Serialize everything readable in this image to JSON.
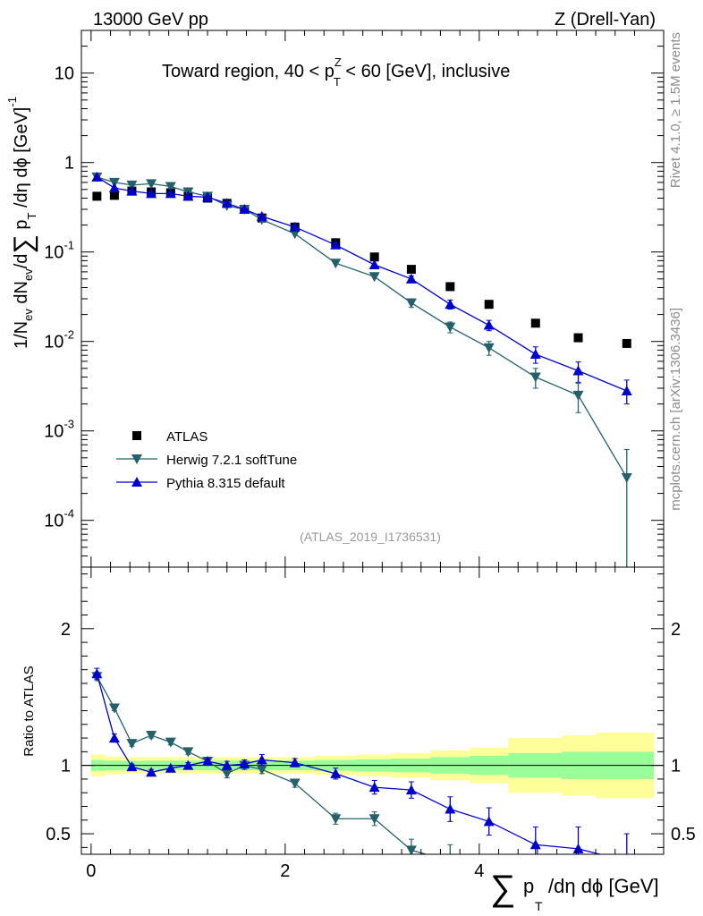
{
  "header": {
    "left": "13000 GeV pp",
    "right": "Z (Drell-Yan)"
  },
  "side_labels": {
    "rivet": "Rivet 4.1.0, ≥ 1.5M events",
    "mcplots": "mcplots.cern.ch [arXiv:1306.3436]"
  },
  "chart_data": [
    {
      "type": "scatter",
      "panel": "main",
      "title": "Toward region, 40 < p_T^Z < 60 [GeV], inclusive",
      "title_parts": {
        "pre": "Toward region, 40 < p",
        "sup": "Z",
        "sub": "T",
        "post": " < 60 [GeV], inclusive"
      },
      "analysis_tag": "(ATLAS_2019_I1736531)",
      "xlabel": "Σ p_T /dη dφ [GeV]",
      "ylabel": "1/N_ev dN_ev/dΣ p_T /dη dφ [GeV]^-1",
      "yscale": "log",
      "xlim": [
        -0.1,
        5.9
      ],
      "ylim": [
        3e-05,
        30
      ],
      "x_ticks": [
        0,
        2,
        4
      ],
      "x_tick_labels": [
        "0",
        "2",
        "4"
      ],
      "y_ticks": [
        0.0001,
        0.001,
        0.01,
        0.1,
        1,
        10
      ],
      "y_tick_labels": [
        "10^-4",
        "10^-3",
        "10^-2",
        "10^-1",
        "1",
        "10"
      ],
      "legend": [
        "ATLAS",
        "Herwig 7.2.1 softTune",
        "Pythia 8.315 default"
      ],
      "legend_position": "bottom-left",
      "series": [
        {
          "name": "ATLAS",
          "color": "#000000",
          "marker": "square",
          "x": [
            0.06,
            0.24,
            0.42,
            0.62,
            0.82,
            1.0,
            1.2,
            1.4,
            1.58,
            1.76,
            2.1,
            2.52,
            2.92,
            3.3,
            3.7,
            4.1,
            4.58,
            5.02,
            5.52
          ],
          "y": [
            0.42,
            0.43,
            0.48,
            0.47,
            0.46,
            0.42,
            0.4,
            0.35,
            0.3,
            0.24,
            0.19,
            0.127,
            0.088,
            0.064,
            0.041,
            0.026,
            0.016,
            0.011,
            0.0095
          ]
        },
        {
          "name": "Herwig 7.2.1 softTune",
          "color": "#24616b",
          "marker": "triangle-down",
          "x": [
            0.06,
            0.24,
            0.42,
            0.62,
            0.82,
            1.0,
            1.2,
            1.4,
            1.58,
            1.76,
            2.1,
            2.52,
            2.92,
            3.3,
            3.7,
            4.1,
            4.58,
            5.02,
            5.52
          ],
          "y": [
            0.69,
            0.6,
            0.56,
            0.58,
            0.54,
            0.47,
            0.42,
            0.33,
            0.3,
            0.23,
            0.16,
            0.075,
            0.053,
            0.027,
            0.0145,
            0.0085,
            0.004,
            0.0025,
            0.0003
          ],
          "yerr_lo": [
            0,
            0,
            0,
            0,
            0,
            0,
            0,
            0,
            0,
            0,
            0,
            0,
            0,
            0.003,
            0.002,
            0.0015,
            0.001,
            0.0009,
            0.00028
          ],
          "yerr_hi": [
            0,
            0,
            0,
            0,
            0,
            0,
            0,
            0,
            0,
            0,
            0,
            0,
            0,
            0.003,
            0.002,
            0.0015,
            0.001,
            0.0009,
            0.00032
          ]
        },
        {
          "name": "Pythia 8.315 default",
          "color": "#0000cc",
          "marker": "triangle-up",
          "x": [
            0.06,
            0.24,
            0.42,
            0.62,
            0.82,
            1.0,
            1.2,
            1.4,
            1.58,
            1.76,
            2.1,
            2.52,
            2.92,
            3.3,
            3.7,
            4.1,
            4.58,
            5.02,
            5.52
          ],
          "y": [
            0.69,
            0.52,
            0.48,
            0.45,
            0.45,
            0.42,
            0.41,
            0.35,
            0.3,
            0.25,
            0.19,
            0.12,
            0.072,
            0.05,
            0.026,
            0.0152,
            0.0072,
            0.0047,
            0.0028
          ],
          "yerr_lo": [
            0,
            0,
            0,
            0,
            0,
            0,
            0,
            0,
            0,
            0,
            0,
            0,
            0,
            0.004,
            0.003,
            0.002,
            0.0015,
            0.0012,
            0.0008
          ],
          "yerr_hi": [
            0,
            0,
            0,
            0,
            0,
            0,
            0,
            0,
            0,
            0,
            0,
            0,
            0,
            0.004,
            0.003,
            0.002,
            0.0015,
            0.0012,
            0.0009
          ]
        }
      ]
    },
    {
      "type": "line",
      "panel": "ratio",
      "ylabel": "Ratio to ATLAS",
      "xlim": [
        -0.1,
        5.9
      ],
      "ylim": [
        0.35,
        2.45
      ],
      "y_ticks": [
        0.5,
        1,
        2
      ],
      "y_tick_labels": [
        "0.5",
        "1",
        "2"
      ],
      "x_ticks": [
        0,
        2,
        4
      ],
      "x_tick_labels": [
        "0",
        "2",
        "4"
      ],
      "bands": {
        "bin_edges": [
          0.0,
          0.15,
          0.33,
          0.52,
          0.72,
          0.91,
          1.1,
          1.3,
          1.49,
          1.67,
          1.85,
          2.3,
          2.73,
          3.1,
          3.5,
          3.9,
          4.3,
          4.85,
          5.2,
          5.8
        ],
        "stat": [
          0.04,
          0.035,
          0.033,
          0.035,
          0.035,
          0.035,
          0.035,
          0.035,
          0.035,
          0.035,
          0.035,
          0.04,
          0.045,
          0.05,
          0.06,
          0.07,
          0.09,
          0.1,
          0.1
        ],
        "total": [
          0.08,
          0.065,
          0.06,
          0.06,
          0.06,
          0.06,
          0.06,
          0.06,
          0.06,
          0.06,
          0.06,
          0.07,
          0.08,
          0.09,
          0.11,
          0.13,
          0.2,
          0.22,
          0.24
        ],
        "stat_color": "#99ff99",
        "total_color": "#ffff99"
      },
      "series": [
        {
          "name": "Herwig 7.2.1 softTune",
          "color": "#24616b",
          "marker": "triangle-down",
          "x": [
            0.06,
            0.24,
            0.42,
            0.62,
            0.82,
            1.0,
            1.2,
            1.4,
            1.58,
            1.76,
            2.1,
            2.52,
            2.92,
            3.3,
            3.7
          ],
          "y": [
            1.65,
            1.42,
            1.16,
            1.22,
            1.17,
            1.1,
            1.03,
            0.94,
            1.0,
            0.97,
            0.87,
            0.61,
            0.61,
            0.38,
            0.3
          ],
          "err": [
            0.03,
            0.02,
            0.02,
            0.02,
            0.02,
            0.02,
            0.02,
            0.03,
            0.03,
            0.03,
            0.03,
            0.04,
            0.05,
            0.08,
            0.12
          ]
        },
        {
          "name": "Pythia 8.315 default",
          "color": "#0000cc",
          "marker": "triangle-up",
          "x": [
            0.06,
            0.24,
            0.42,
            0.62,
            0.82,
            1.0,
            1.2,
            1.4,
            1.58,
            1.76,
            2.1,
            2.52,
            2.92,
            3.3,
            3.7,
            4.1,
            4.58,
            5.02,
            5.52
          ],
          "y": [
            1.67,
            1.2,
            0.99,
            0.95,
            0.98,
            1.0,
            1.03,
            1.0,
            1.01,
            1.04,
            1.02,
            0.94,
            0.84,
            0.82,
            0.68,
            0.59,
            0.42,
            0.39,
            0.3
          ],
          "err": [
            0.04,
            0.03,
            0.02,
            0.02,
            0.02,
            0.02,
            0.02,
            0.03,
            0.03,
            0.04,
            0.03,
            0.04,
            0.05,
            0.06,
            0.09,
            0.1,
            0.13,
            0.16,
            0.2
          ]
        }
      ]
    }
  ]
}
